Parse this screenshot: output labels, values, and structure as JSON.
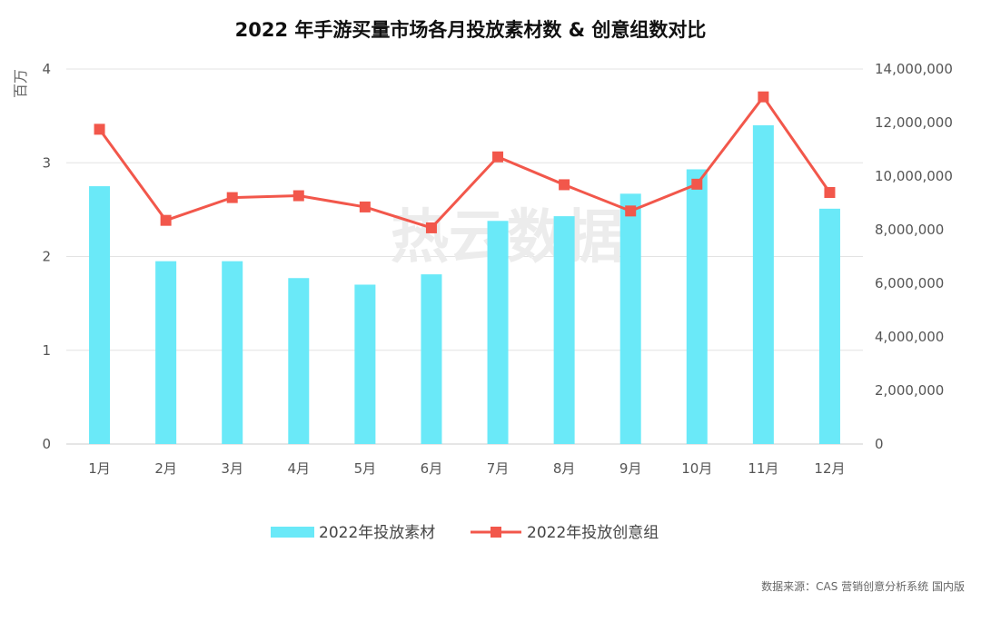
{
  "chart_data": {
    "type": "bar",
    "title": "2022 年手游买量市场各月投放素材数 & 创意组数对比",
    "categories": [
      "1月",
      "2月",
      "3月",
      "4月",
      "5月",
      "6月",
      "7月",
      "8月",
      "9月",
      "10月",
      "11月",
      "12月"
    ],
    "series": [
      {
        "name": "2022年投放素材",
        "type": "bar",
        "axis": "left",
        "color": "#6ae9f8",
        "values": [
          2.75,
          1.95,
          1.95,
          1.77,
          1.7,
          1.81,
          2.38,
          2.43,
          2.67,
          2.93,
          3.4,
          2.51
        ]
      },
      {
        "name": "2022年投放创意组",
        "type": "line",
        "axis": "right",
        "color": "#f2574b",
        "values": [
          11750000,
          8350000,
          9200000,
          9270000,
          8850000,
          8070000,
          10720000,
          9680000,
          8700000,
          9700000,
          12960000,
          9390000
        ]
      }
    ],
    "y_left": {
      "unit": "百万",
      "ylim": [
        0,
        4
      ],
      "ticks": [
        "0",
        "1",
        "2",
        "3",
        "4"
      ]
    },
    "y_right": {
      "ylim": [
        0,
        14000000
      ],
      "ticks": [
        "0",
        "2,000,000",
        "4,000,000",
        "6,000,000",
        "8,000,000",
        "10,000,000",
        "12,000,000",
        "14,000,000"
      ]
    },
    "grid": true,
    "legend_position": "bottom"
  },
  "watermark": "热云数据",
  "source": "数据来源：CAS 营销创意分析系统 国内版"
}
